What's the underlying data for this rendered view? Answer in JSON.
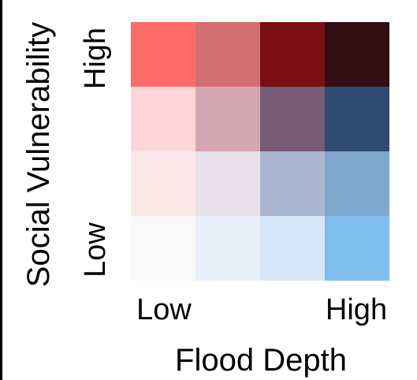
{
  "chart_data": {
    "type": "heatmap",
    "title": "",
    "xlabel": "Flood Depth",
    "ylabel": "Social Vulnerability",
    "x_tick_labels": {
      "low": "Low",
      "high": "High"
    },
    "y_tick_labels": {
      "low": "Low",
      "high": "High"
    },
    "n_cols": 4,
    "n_rows": 4,
    "grid": false,
    "rows": [
      {
        "social_vulnerability_level": 4,
        "colors": [
          "#FF6B6B",
          "#D36F70",
          "#7A1016",
          "#320D14"
        ]
      },
      {
        "social_vulnerability_level": 3,
        "colors": [
          "#FFD6D8",
          "#D4A6B1",
          "#765C74",
          "#2F4A70"
        ]
      },
      {
        "social_vulnerability_level": 2,
        "colors": [
          "#FCE9EA",
          "#E9E1EA",
          "#AAB5D0",
          "#7FA8CF"
        ]
      },
      {
        "social_vulnerability_level": 1,
        "colors": [
          "#F9F9F9",
          "#E8F0F9",
          "#D6E8F7",
          "#80BEEE"
        ]
      }
    ]
  }
}
